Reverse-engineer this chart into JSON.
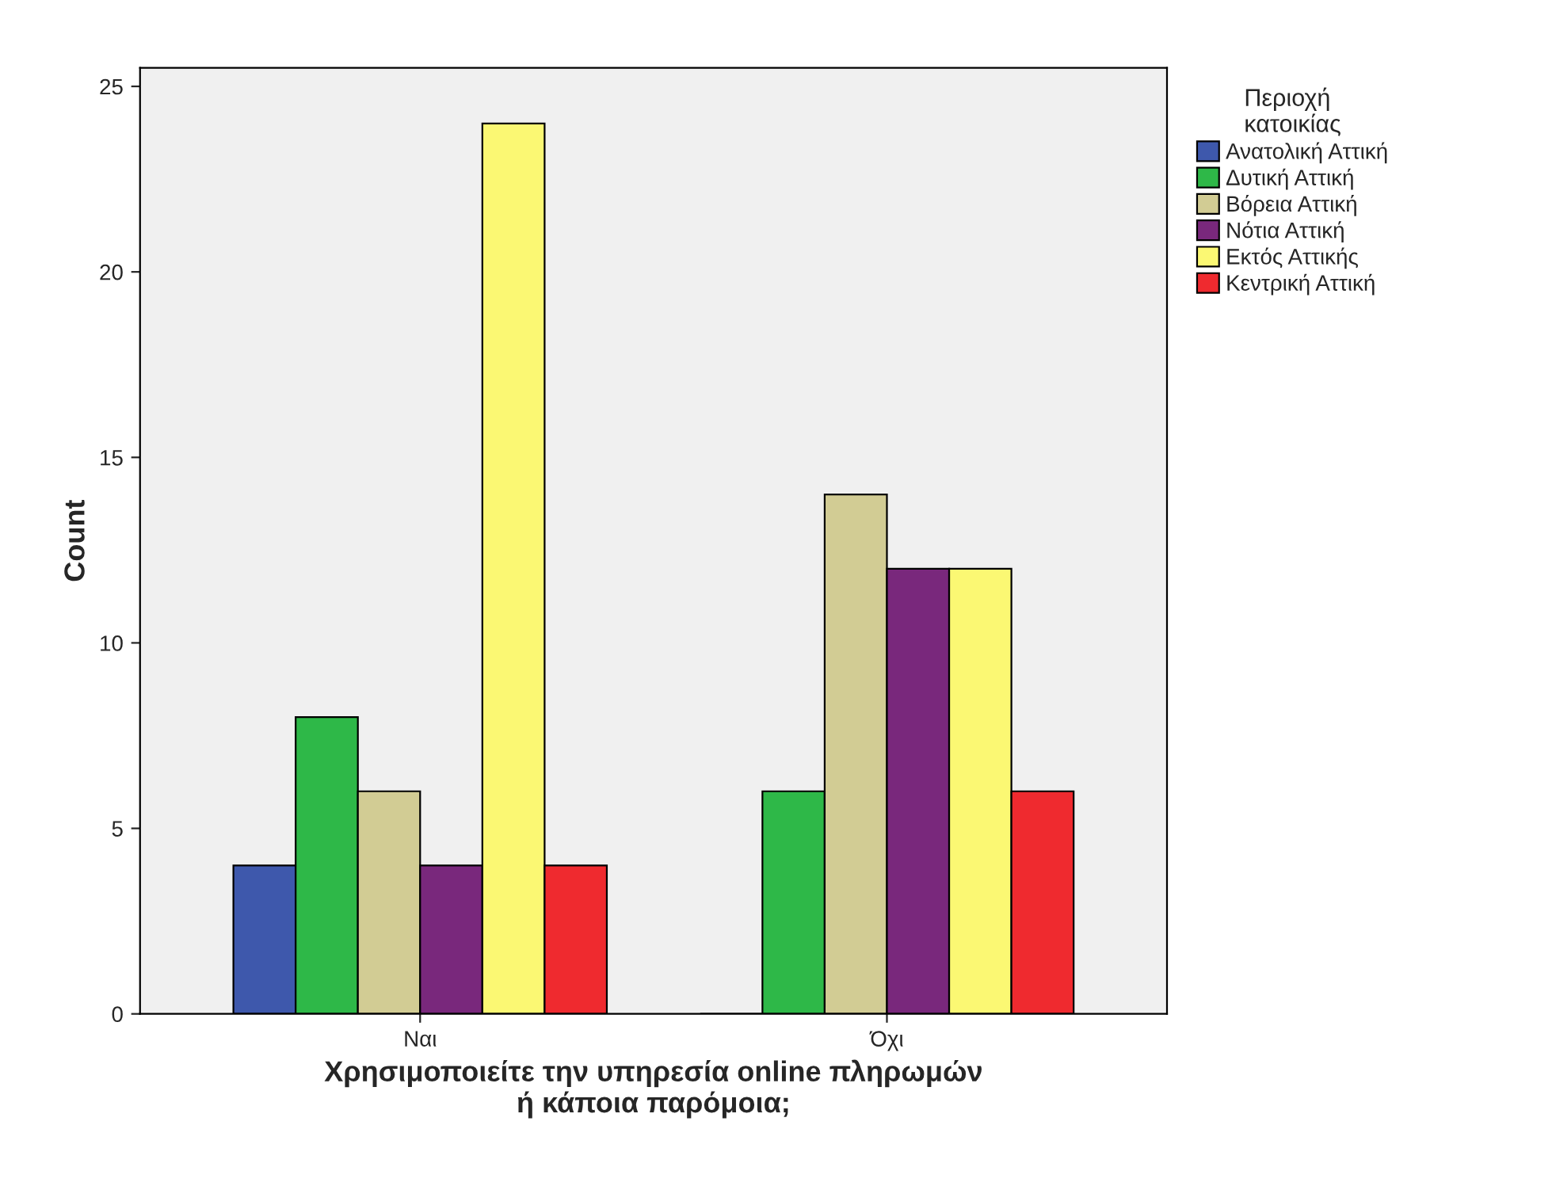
{
  "chart_data": {
    "type": "bar",
    "categories": [
      "Ναι",
      "Όχι"
    ],
    "series": [
      {
        "name": "Ανατολική Αττική",
        "color": "#3e58ac",
        "values": [
          4,
          0
        ]
      },
      {
        "name": "Δυτική Αττική",
        "color": "#2eb848",
        "values": [
          8,
          6
        ]
      },
      {
        "name": "Βόρεια Αττική",
        "color": "#d2cc94",
        "values": [
          6,
          14
        ]
      },
      {
        "name": "Νότια Αττική",
        "color": "#79287c",
        "values": [
          4,
          12
        ]
      },
      {
        "name": "Εκτός Αττικής",
        "color": "#fbf873",
        "values": [
          24,
          12
        ]
      },
      {
        "name": "Κεντρική Αττική",
        "color": "#ef2a2f",
        "values": [
          4,
          6
        ]
      }
    ],
    "xlabel": "Χρησιμοποιείτε την υπηρεσία online πληρωμών\nή κάποια παρόμοια;",
    "ylabel": "Count",
    "legend_title": "Περιοχή\nκατοικίας",
    "legend": "right",
    "ylim": [
      0,
      25.5
    ],
    "yticks": [
      0,
      5,
      10,
      15,
      20,
      25
    ],
    "grid": false
  }
}
